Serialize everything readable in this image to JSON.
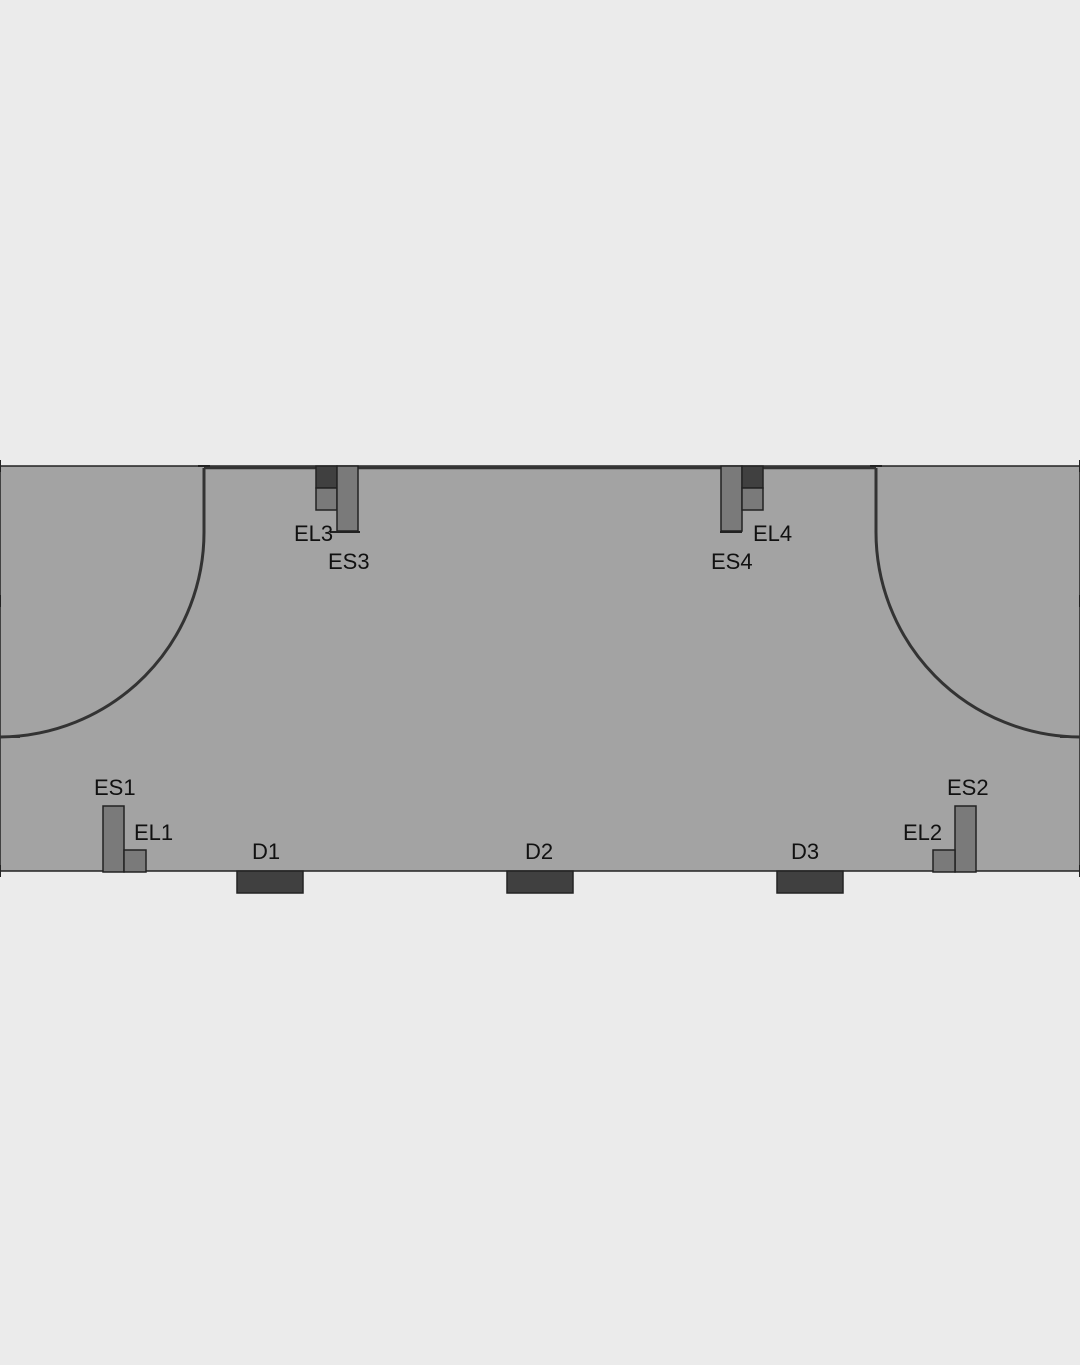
{
  "colors": {
    "background": "#ebebeb",
    "floor": "#a3a3a3",
    "element": "#7a7a7a",
    "element_dark": "#404040",
    "line": "#222222"
  },
  "labels": {
    "es1": "ES1",
    "el1": "EL1",
    "d1": "D1",
    "d2": "D2",
    "d3": "D3",
    "el2": "EL2",
    "es2": "ES2",
    "el3": "EL3",
    "es3": "ES3",
    "es4": "ES4",
    "el4": "EL4"
  }
}
